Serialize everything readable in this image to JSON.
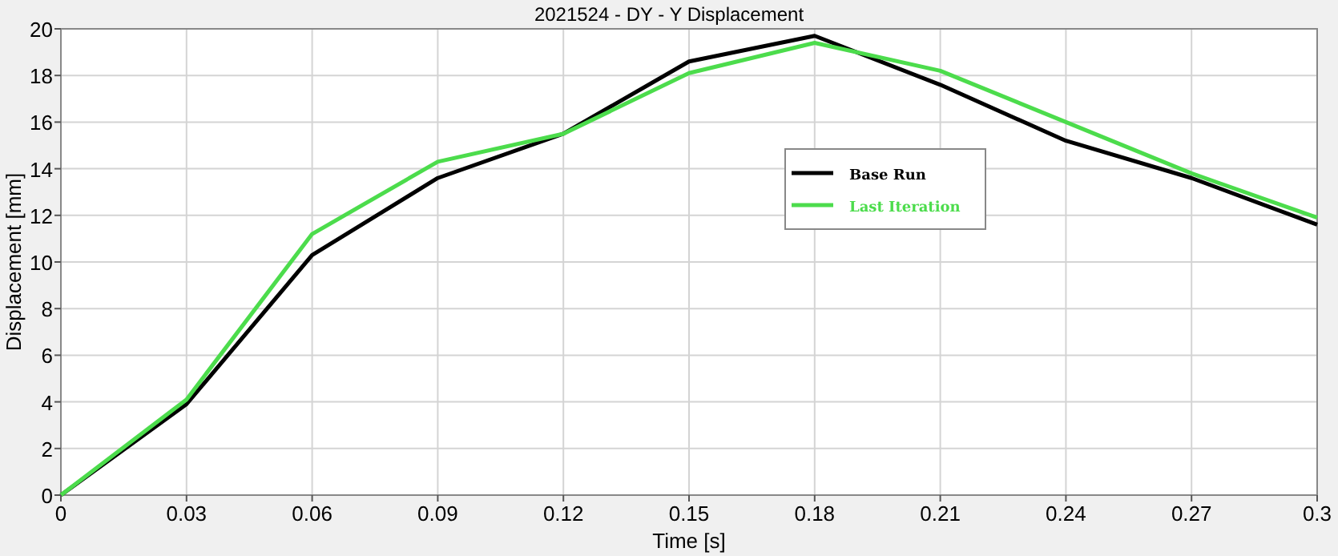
{
  "chart_data": {
    "type": "line",
    "title": "2021524 - DY - Y Displacement",
    "xlabel": "Time [s]",
    "ylabel": "Displacement [mm]",
    "x": [
      0,
      0.03,
      0.06,
      0.09,
      0.12,
      0.15,
      0.18,
      0.21,
      0.24,
      0.27,
      0.3
    ],
    "series": [
      {
        "name": "Base Run",
        "color": "#000000",
        "values": [
          0,
          3.9,
          10.3,
          13.6,
          15.5,
          18.6,
          19.7,
          17.6,
          15.2,
          13.6,
          11.6
        ]
      },
      {
        "name": "Last Iteration",
        "color": "#4cdc4c",
        "values": [
          0,
          4.1,
          11.2,
          14.3,
          15.5,
          18.1,
          19.4,
          18.2,
          16.0,
          13.8,
          11.9
        ]
      }
    ],
    "xlim": [
      0,
      0.3
    ],
    "xticks": [
      0,
      0.03,
      0.06,
      0.09,
      0.12,
      0.15,
      0.18,
      0.21,
      0.24,
      0.27,
      0.3
    ],
    "ylim": [
      0,
      20
    ],
    "yticks": [
      0,
      2,
      4,
      6,
      8,
      10,
      12,
      14,
      16,
      18,
      20
    ],
    "grid": true,
    "legend": "right",
    "marker": "none",
    "line_style": "solid"
  }
}
